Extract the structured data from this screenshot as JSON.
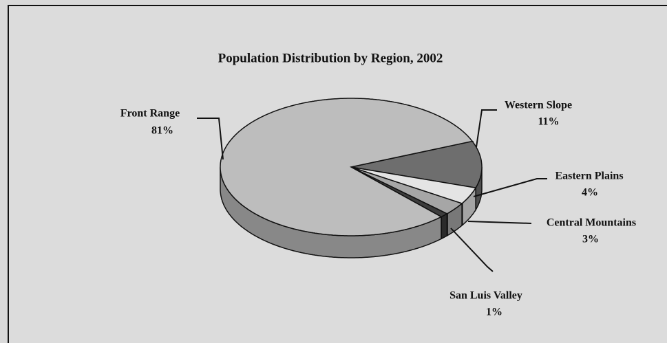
{
  "chart_data": {
    "type": "pie",
    "title": "Population Distribution by Region, 2002",
    "categories": [
      "Western Slope",
      "Eastern Plains",
      "Central Mountains",
      "San Luis Valley",
      "Front Range"
    ],
    "values": [
      11,
      4,
      3,
      1,
      81
    ],
    "value_labels": [
      "11%",
      "4%",
      "3%",
      "1%",
      "81%"
    ],
    "colors": [
      "#6e6e6e",
      "#e4e4e4",
      "#a6a6a6",
      "#3c3c3c",
      "#bdbdbd"
    ]
  }
}
